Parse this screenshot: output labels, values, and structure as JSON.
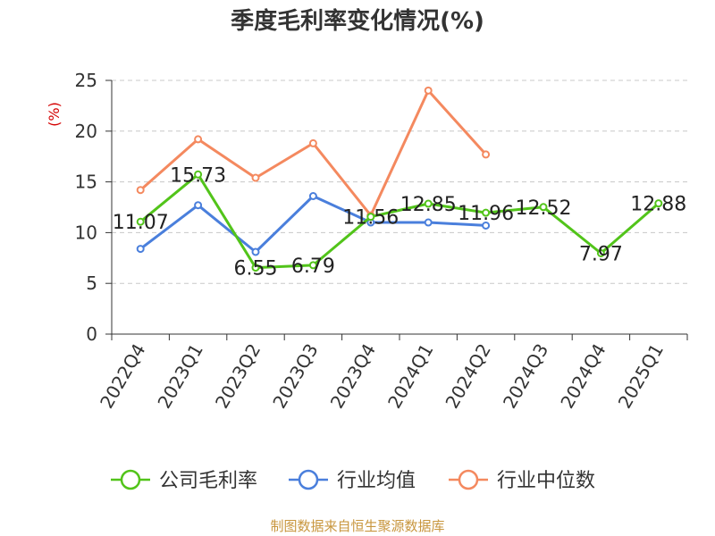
{
  "chart_data": {
    "type": "line",
    "title": "季度毛利率变化情况(%)",
    "ylabel": "(%)",
    "xlabel": "",
    "ylim": [
      0,
      25
    ],
    "yticks": [
      0,
      5,
      10,
      15,
      20,
      25
    ],
    "grid": true,
    "legend_position": "bottom",
    "categories": [
      "2022Q4",
      "2023Q1",
      "2023Q2",
      "2023Q3",
      "2023Q4",
      "2024Q1",
      "2024Q2",
      "2024Q3",
      "2024Q4",
      "2025Q1"
    ],
    "series": [
      {
        "name": "公司毛利率",
        "color": "#52c41a",
        "values": [
          11.07,
          15.73,
          6.55,
          6.79,
          11.56,
          12.85,
          11.96,
          12.52,
          7.97,
          12.88
        ],
        "labels": [
          "11.07",
          "15.73",
          "6.55",
          "6.79",
          "11.56",
          "12.85",
          "11.96",
          "12.52",
          "7.97",
          "12.88"
        ]
      },
      {
        "name": "行业均值",
        "color": "#4a7fdc",
        "values": [
          8.4,
          12.7,
          8.1,
          13.6,
          11.0,
          11.0,
          10.7,
          null,
          null,
          null
        ]
      },
      {
        "name": "行业中位数",
        "color": "#f4895f",
        "values": [
          14.2,
          19.2,
          15.4,
          18.8,
          11.7,
          24.0,
          17.7,
          null,
          null,
          null
        ]
      }
    ]
  },
  "source_text": "制图数据来自恒生聚源数据库"
}
